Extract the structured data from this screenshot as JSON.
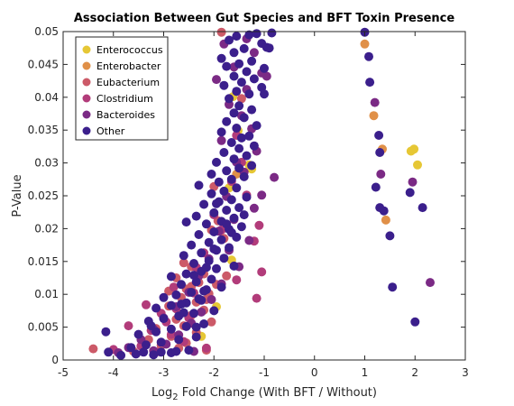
{
  "chart_data": {
    "type": "scatter",
    "title": "Association Between Gut Species and BFT Toxin Presence",
    "xlabel_prefix": "Log",
    "xlabel_sub": "2",
    "xlabel_rest": " Fold Change (With BFT / Without)",
    "ylabel": "P-Value",
    "xlim": [
      -5,
      3
    ],
    "ylim": [
      0,
      0.05
    ],
    "xticks": [
      "-5",
      "-4",
      "-3",
      "-2",
      "-1",
      "0",
      "1",
      "2",
      "3"
    ],
    "yticks": [
      "0",
      "0.005",
      "0.01",
      "0.015",
      "0.02",
      "0.025",
      "0.03",
      "0.035",
      "0.04",
      "0.045",
      "0.05"
    ],
    "grid": false,
    "legend_position": "top-left",
    "series": [
      {
        "name": "Enterococcus",
        "color": "#e6c735",
        "points": [
          [
            -1.62,
            0.0401
          ],
          [
            -1.52,
            0.0349
          ],
          [
            -1.3,
            0.0297
          ],
          [
            -1.25,
            0.0291
          ],
          [
            -1.7,
            0.0262
          ],
          [
            -1.65,
            0.0152
          ],
          [
            -1.95,
            0.0081
          ],
          [
            -2.25,
            0.0036
          ],
          [
            1.92,
            0.0318
          ],
          [
            1.98,
            0.0321
          ],
          [
            2.05,
            0.0297
          ]
        ]
      },
      {
        "name": "Enterobacter",
        "color": "#e09048",
        "points": [
          [
            1.0,
            0.0481
          ],
          [
            1.18,
            0.0372
          ],
          [
            1.35,
            0.0321
          ],
          [
            1.42,
            0.0213
          ],
          [
            -1.55,
            0.0283
          ]
        ]
      },
      {
        "name": "Eubacterium",
        "color": "#cc5a68",
        "points": [
          [
            -1.85,
            0.0499
          ],
          [
            -1.45,
            0.0398
          ],
          [
            -2.0,
            0.0264
          ],
          [
            -1.92,
            0.0212
          ],
          [
            -2.05,
            0.0198
          ],
          [
            -1.8,
            0.0185
          ],
          [
            -2.6,
            0.0148
          ],
          [
            -2.45,
            0.0142
          ],
          [
            -2.2,
            0.0131
          ],
          [
            -2.75,
            0.0125
          ],
          [
            -2.3,
            0.0118
          ],
          [
            -1.95,
            0.0115
          ],
          [
            -2.55,
            0.0108
          ],
          [
            -2.1,
            0.0101
          ],
          [
            -2.65,
            0.0095
          ],
          [
            -2.35,
            0.0088
          ],
          [
            -2.9,
            0.0082
          ],
          [
            -2.2,
            0.0076
          ],
          [
            -2.45,
            0.0068
          ],
          [
            -2.75,
            0.0062
          ],
          [
            -2.05,
            0.0058
          ],
          [
            -2.6,
            0.0052
          ],
          [
            -3.15,
            0.0048
          ],
          [
            -2.35,
            0.0042
          ],
          [
            -2.85,
            0.0036
          ],
          [
            -3.3,
            0.0031
          ],
          [
            -2.55,
            0.0026
          ],
          [
            -3.05,
            0.0022
          ],
          [
            -2.7,
            0.0018
          ],
          [
            -4.4,
            0.0017
          ],
          [
            -2.15,
            0.0015
          ],
          [
            -3.6,
            0.0013
          ],
          [
            -2.45,
            0.0112
          ],
          [
            -1.75,
            0.0128
          ],
          [
            -2.9,
            0.0105
          ],
          [
            -2.15,
            0.0092
          ]
        ]
      },
      {
        "name": "Clostridium",
        "color": "#b23c7a",
        "points": [
          [
            -1.55,
            0.0342
          ],
          [
            -1.45,
            0.0301
          ],
          [
            -1.65,
            0.0272
          ],
          [
            -1.35,
            0.0251
          ],
          [
            -1.1,
            0.0205
          ],
          [
            -1.2,
            0.0181
          ],
          [
            -2.0,
            0.0221
          ],
          [
            -1.85,
            0.0198
          ],
          [
            -2.2,
            0.0163
          ],
          [
            -2.35,
            0.0141
          ],
          [
            -1.55,
            0.0122
          ],
          [
            -1.15,
            0.0094
          ],
          [
            -2.8,
            0.0111
          ],
          [
            -3.35,
            0.0084
          ],
          [
            -2.75,
            0.0078
          ],
          [
            -3.05,
            0.0071
          ],
          [
            -2.5,
            0.0064
          ],
          [
            -3.7,
            0.0052
          ],
          [
            -3.25,
            0.0045
          ],
          [
            -2.85,
            0.0039
          ],
          [
            -2.6,
            0.0028
          ],
          [
            -3.45,
            0.0021
          ],
          [
            -4.0,
            0.0016
          ],
          [
            -3.15,
            0.0012
          ],
          [
            -2.15,
            0.0018
          ],
          [
            -1.05,
            0.0134
          ],
          [
            -2.95,
            0.0058
          ],
          [
            -2.4,
            0.0102
          ]
        ]
      },
      {
        "name": "Bacteroides",
        "color": "#7b2a85",
        "points": [
          [
            -1.8,
            0.0481
          ],
          [
            -1.2,
            0.0468
          ],
          [
            -1.6,
            0.0446
          ],
          [
            -1.95,
            0.0427
          ],
          [
            -1.35,
            0.0412
          ],
          [
            -1.05,
            0.0437
          ],
          [
            -1.7,
            0.0389
          ],
          [
            -1.45,
            0.0372
          ],
          [
            -1.25,
            0.0352
          ],
          [
            -1.85,
            0.0334
          ],
          [
            -1.15,
            0.0318
          ],
          [
            -1.55,
            0.0301
          ],
          [
            -0.8,
            0.0278
          ],
          [
            -1.4,
            0.0286
          ],
          [
            -1.75,
            0.0249
          ],
          [
            -1.2,
            0.0231
          ],
          [
            -1.6,
            0.0214
          ],
          [
            -1.9,
            0.0196
          ],
          [
            -1.3,
            0.0182
          ],
          [
            -1.7,
            0.0167
          ],
          [
            -2.1,
            0.0154
          ],
          [
            -1.5,
            0.0142
          ],
          [
            -2.3,
            0.0128
          ],
          [
            -1.85,
            0.0116
          ],
          [
            -2.5,
            0.0103
          ],
          [
            -2.05,
            0.0092
          ],
          [
            -2.75,
            0.0081
          ],
          [
            -2.25,
            0.0073
          ],
          [
            -3.0,
            0.0064
          ],
          [
            -2.45,
            0.0056
          ],
          [
            -3.2,
            0.0047
          ],
          [
            -2.7,
            0.0038
          ],
          [
            -3.45,
            0.0031
          ],
          [
            -2.95,
            0.0024
          ],
          [
            -3.7,
            0.0019
          ],
          [
            -3.2,
            0.0014
          ],
          [
            -3.9,
            0.0011
          ],
          [
            -2.4,
            0.0013
          ],
          [
            1.2,
            0.0392
          ],
          [
            1.32,
            0.0283
          ],
          [
            1.95,
            0.0271
          ],
          [
            2.3,
            0.0118
          ],
          [
            -1.05,
            0.0251
          ],
          [
            -0.95,
            0.0432
          ],
          [
            -1.35,
            0.0489
          ]
        ]
      },
      {
        "name": "Other",
        "color": "#3b1f8c",
        "points": [
          [
            -1.7,
            0.0487
          ],
          [
            -1.55,
            0.0493
          ],
          [
            -1.3,
            0.0495
          ],
          [
            -1.15,
            0.0497
          ],
          [
            -0.85,
            0.0498
          ],
          [
            -1.05,
            0.0482
          ],
          [
            -0.95,
            0.0476
          ],
          [
            -1.4,
            0.0474
          ],
          [
            -1.6,
            0.0468
          ],
          [
            -1.85,
            0.0459
          ],
          [
            -1.25,
            0.0455
          ],
          [
            -1.5,
            0.0451
          ],
          [
            -1.75,
            0.0447
          ],
          [
            -1.0,
            0.0444
          ],
          [
            -1.35,
            0.0439
          ],
          [
            -1.6,
            0.0432
          ],
          [
            -1.2,
            0.0428
          ],
          [
            -1.45,
            0.0423
          ],
          [
            -1.8,
            0.0418
          ],
          [
            -1.05,
            0.0415
          ],
          [
            -1.55,
            0.0409
          ],
          [
            -1.3,
            0.0405
          ],
          [
            -1.7,
            0.0398
          ],
          [
            -1.5,
            0.0387
          ],
          [
            -1.25,
            0.0381
          ],
          [
            -1.6,
            0.0376
          ],
          [
            -1.4,
            0.0369
          ],
          [
            -1.75,
            0.0363
          ],
          [
            -1.15,
            0.0357
          ],
          [
            -1.55,
            0.0353
          ],
          [
            -1.85,
            0.0347
          ],
          [
            -1.3,
            0.0341
          ],
          [
            -1.45,
            0.0338
          ],
          [
            -1.65,
            0.0331
          ],
          [
            -1.2,
            0.0326
          ],
          [
            -1.5,
            0.0322
          ],
          [
            -1.8,
            0.0316
          ],
          [
            -1.35,
            0.0311
          ],
          [
            -1.6,
            0.0306
          ],
          [
            -1.95,
            0.0301
          ],
          [
            -1.25,
            0.0296
          ],
          [
            -1.5,
            0.0292
          ],
          [
            -1.75,
            0.0288
          ],
          [
            -2.05,
            0.0283
          ],
          [
            -1.4,
            0.0279
          ],
          [
            -1.65,
            0.0275
          ],
          [
            -1.9,
            0.0271
          ],
          [
            -2.3,
            0.0266
          ],
          [
            -1.55,
            0.0262
          ],
          [
            -1.8,
            0.0257
          ],
          [
            -2.05,
            0.0253
          ],
          [
            -1.35,
            0.0248
          ],
          [
            -1.65,
            0.0244
          ],
          [
            -1.9,
            0.0241
          ],
          [
            -2.2,
            0.0237
          ],
          [
            -1.5,
            0.0232
          ],
          [
            -1.75,
            0.0228
          ],
          [
            -2.0,
            0.0224
          ],
          [
            -2.35,
            0.0219
          ],
          [
            -1.6,
            0.0216
          ],
          [
            -1.85,
            0.0211
          ],
          [
            -2.15,
            0.0207
          ],
          [
            -1.45,
            0.0203
          ],
          [
            -1.7,
            0.0199
          ],
          [
            -2.0,
            0.0195
          ],
          [
            -2.3,
            0.0191
          ],
          [
            -1.55,
            0.0187
          ],
          [
            -1.85,
            0.0183
          ],
          [
            -2.1,
            0.0179
          ],
          [
            -2.45,
            0.0175
          ],
          [
            -1.7,
            0.0171
          ],
          [
            -1.95,
            0.0167
          ],
          [
            -2.25,
            0.0163
          ],
          [
            -2.6,
            0.0159
          ],
          [
            -1.8,
            0.0155
          ],
          [
            -2.1,
            0.0151
          ],
          [
            -2.4,
            0.0147
          ],
          [
            -1.6,
            0.0143
          ],
          [
            -1.95,
            0.0139
          ],
          [
            -2.25,
            0.0135
          ],
          [
            -2.55,
            0.0131
          ],
          [
            -2.85,
            0.0127
          ],
          [
            -2.05,
            0.0123
          ],
          [
            -2.35,
            0.0119
          ],
          [
            -2.65,
            0.0115
          ],
          [
            -1.85,
            0.0111
          ],
          [
            -2.15,
            0.0107
          ],
          [
            -2.45,
            0.0103
          ],
          [
            -2.75,
            0.0099
          ],
          [
            -3.0,
            0.0095
          ],
          [
            -2.25,
            0.0091
          ],
          [
            -2.55,
            0.0087
          ],
          [
            -2.85,
            0.0083
          ],
          [
            -3.15,
            0.0079
          ],
          [
            -2.0,
            0.0075
          ],
          [
            -2.4,
            0.0071
          ],
          [
            -2.7,
            0.0067
          ],
          [
            -3.0,
            0.0063
          ],
          [
            -3.3,
            0.0059
          ],
          [
            -2.2,
            0.0055
          ],
          [
            -2.55,
            0.0051
          ],
          [
            -2.85,
            0.0047
          ],
          [
            -3.15,
            0.0043
          ],
          [
            -3.5,
            0.0039
          ],
          [
            -2.35,
            0.0035
          ],
          [
            -2.7,
            0.0031
          ],
          [
            -3.05,
            0.0027
          ],
          [
            -3.35,
            0.0023
          ],
          [
            -3.65,
            0.0019
          ],
          [
            -2.5,
            0.0015
          ],
          [
            -2.85,
            0.0011
          ],
          [
            -3.2,
            0.0008
          ],
          [
            -3.55,
            0.0009
          ],
          [
            -3.85,
            0.0007
          ],
          [
            -4.1,
            0.0012
          ],
          [
            -4.15,
            0.0043
          ],
          [
            -2.75,
            0.0013
          ],
          [
            -3.4,
            0.0012
          ],
          [
            -2.2,
            0.0105
          ],
          [
            -2.6,
            0.0072
          ],
          [
            -1.65,
            0.0194
          ],
          [
            -2.15,
            0.0141
          ],
          [
            -1.95,
            0.0238
          ],
          [
            -1.4,
            0.0221
          ],
          [
            -2.65,
            0.0085
          ],
          [
            -3.25,
            0.0052
          ],
          [
            -2.0,
            0.0169
          ],
          [
            -2.4,
            0.0129
          ],
          [
            -1.75,
            0.0207
          ],
          [
            -2.3,
            0.0093
          ],
          [
            1.0,
            0.0499
          ],
          [
            1.08,
            0.0462
          ],
          [
            1.1,
            0.0423
          ],
          [
            1.28,
            0.0342
          ],
          [
            1.3,
            0.0316
          ],
          [
            1.22,
            0.0263
          ],
          [
            1.3,
            0.0232
          ],
          [
            1.38,
            0.0227
          ],
          [
            1.5,
            0.0189
          ],
          [
            1.55,
            0.0111
          ],
          [
            2.15,
            0.0232
          ],
          [
            2.0,
            0.0058
          ],
          [
            1.9,
            0.0255
          ],
          [
            -2.55,
            0.021
          ],
          [
            -3.05,
            0.0012
          ],
          [
            -2.35,
            0.005
          ],
          [
            -0.9,
            0.0475
          ],
          [
            -1.0,
            0.0405
          ]
        ]
      }
    ]
  }
}
